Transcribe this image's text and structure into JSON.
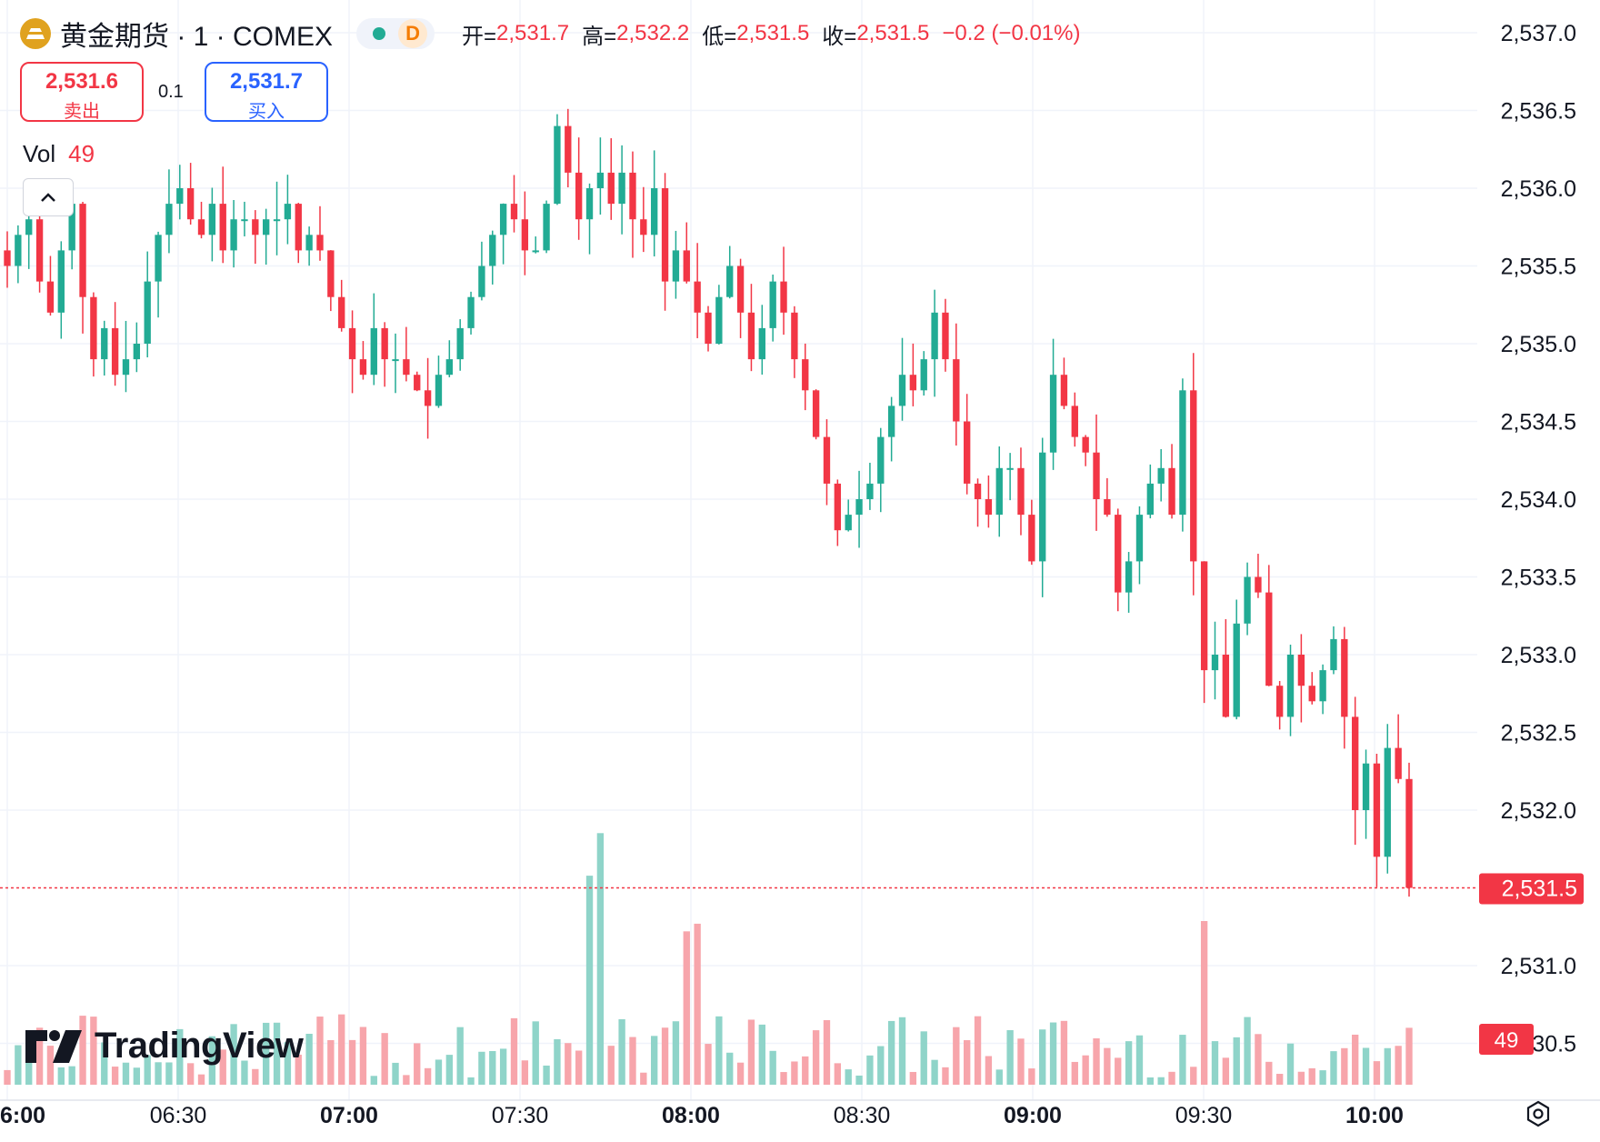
{
  "header": {
    "symbol": "黄金期货 · 1 · COMEX",
    "badge": "D",
    "ohlc": [
      {
        "label": "开=",
        "value": "2,531.7"
      },
      {
        "label": "高=",
        "value": "2,532.2"
      },
      {
        "label": "低=",
        "value": "2,531.5"
      },
      {
        "label": "收=",
        "value": "2,531.5"
      }
    ],
    "change": "−0.2 (−0.01%)"
  },
  "trade": {
    "sell_price": "2,531.6",
    "sell_label": "卖出",
    "buy_price": "2,531.7",
    "buy_label": "买入",
    "spread": "0.1"
  },
  "volume_legend": {
    "label": "Vol",
    "value": "49"
  },
  "watermark": "TradingView",
  "colors": {
    "up": "#22ab94",
    "down": "#f23645",
    "vol_up": "#8fd4c9",
    "vol_down": "#f7a5ab",
    "grid": "#f0f3fa",
    "text": "#131722"
  },
  "chart_data": {
    "type": "candlestick",
    "symbol": "黄金期货 · 1 · COMEX",
    "interval": "1 min",
    "x_tick_labels": [
      "6:00",
      "06:30",
      "07:00",
      "07:30",
      "08:00",
      "08:30",
      "09:00",
      "09:30",
      "10:00"
    ],
    "y_tick_labels": [
      "2,537.0",
      "2,536.5",
      "2,536.0",
      "2,535.5",
      "2,535.0",
      "2,534.5",
      "2,534.0",
      "2,533.5",
      "2,533.0",
      "2,532.5",
      "2,532.0",
      "2,531.0",
      "2,530.5"
    ],
    "last_price": 2531.5,
    "last_price_label": "2,531.5",
    "last_volume_label": "49",
    "ylim": [
      2530.3,
      2537.1
    ],
    "grid": true,
    "close_series": [
      2535.5,
      2535.7,
      2535.8,
      2535.4,
      2535.2,
      2535.6,
      2535.9,
      2535.3,
      2534.9,
      2535.1,
      2534.8,
      2534.9,
      2535.0,
      2535.4,
      2535.7,
      2535.9,
      2536.0,
      2535.8,
      2535.7,
      2535.9,
      2535.6,
      2535.8,
      2535.8,
      2535.7,
      2535.8,
      2535.8,
      2535.9,
      2535.6,
      2535.7,
      2535.6,
      2535.3,
      2535.1,
      2534.9,
      2534.8,
      2535.1,
      2534.9,
      2534.9,
      2534.8,
      2534.7,
      2534.6,
      2534.8,
      2534.9,
      2535.1,
      2535.3,
      2535.5,
      2535.7,
      2535.9,
      2535.8,
      2535.6,
      2535.6,
      2535.9,
      2536.4,
      2536.1,
      2535.8,
      2536.0,
      2536.1,
      2535.9,
      2536.1,
      2535.8,
      2535.7,
      2536.0,
      2535.4,
      2535.6,
      2535.4,
      2535.2,
      2535.0,
      2535.3,
      2535.5,
      2535.2,
      2534.9,
      2535.1,
      2535.4,
      2535.2,
      2534.9,
      2534.7,
      2534.4,
      2534.1,
      2533.8,
      2533.9,
      2534.0,
      2534.1,
      2534.4,
      2534.6,
      2534.8,
      2534.7,
      2534.9,
      2535.2,
      2534.9,
      2534.5,
      2534.1,
      2534.0,
      2533.9,
      2534.2,
      2534.2,
      2533.9,
      2533.6,
      2534.3,
      2534.8,
      2534.6,
      2534.4,
      2534.3,
      2534.0,
      2533.9,
      2533.4,
      2533.6,
      2533.9,
      2534.1,
      2534.2,
      2533.9,
      2534.7,
      2533.6,
      2532.9,
      2533.0,
      2532.6,
      2533.2,
      2533.5,
      2533.4,
      2532.8,
      2532.6,
      2533.0,
      2532.8,
      2532.7,
      2532.9,
      2533.1,
      2532.6,
      2532.0,
      2532.3,
      2531.7,
      2532.4,
      2532.2,
      2531.5
    ]
  }
}
